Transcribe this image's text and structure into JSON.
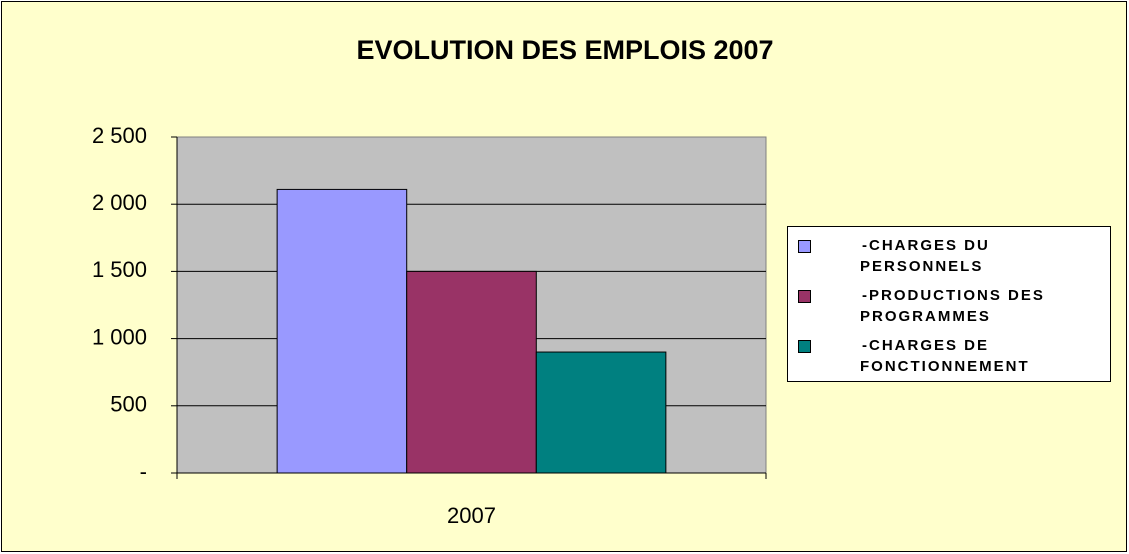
{
  "chart_data": {
    "type": "bar",
    "title": "EVOLUTION DES EMPLOIS 2007",
    "categories": [
      "2007"
    ],
    "series": [
      {
        "name": "-CHARGES DU PERSONNELS",
        "color": "#9999ff",
        "values": [
          2110
        ]
      },
      {
        "name": "-PRODUCTIONS DES PROGRAMMES",
        "color": "#993366",
        "values": [
          1500
        ]
      },
      {
        "name": "-CHARGES DE FONCTIONNEMENT",
        "color": "#008080",
        "values": [
          900
        ]
      }
    ],
    "ylim": [
      0,
      2500
    ],
    "yticks": [
      {
        "value": 0,
        "label": "-"
      },
      500,
      {
        "value": 1000,
        "label": "1 000"
      },
      {
        "value": 1500,
        "label": "1 500"
      },
      {
        "value": 2000,
        "label": "2 000"
      },
      {
        "value": 2500,
        "label": "2 500"
      }
    ],
    "grid": true,
    "legend": "right"
  }
}
